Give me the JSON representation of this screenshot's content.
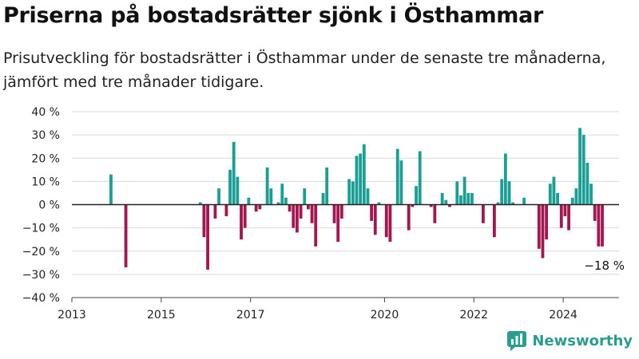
{
  "header": {
    "title": "Priserna på bostadsrätter sjönk i Östhammar",
    "subtitle": "Prisutveckling för bostadsrätter i Östhammar under de senaste tre månaderna, jämfört med tre månader tidigare."
  },
  "brand": {
    "name": "Newsworthy",
    "icon": "newsworthy-logo-icon",
    "color": "#2a9d8f"
  },
  "chart_data": {
    "type": "bar",
    "y_unit": "%",
    "ylim": [
      -40,
      40
    ],
    "yticks": [
      {
        "value": 40,
        "label": "40 %"
      },
      {
        "value": 30,
        "label": "30 %"
      },
      {
        "value": 20,
        "label": "20 %"
      },
      {
        "value": 10,
        "label": "10 %"
      },
      {
        "value": 0,
        "label": "0 %"
      },
      {
        "value": -10,
        "label": "−10 %"
      },
      {
        "value": -20,
        "label": "−20 %"
      },
      {
        "value": -30,
        "label": "−30 %"
      },
      {
        "value": -40,
        "label": "−40 %"
      }
    ],
    "xlim": [
      2013.0,
      2025.25
    ],
    "xticks": [
      {
        "value": 2013,
        "label": "2013"
      },
      {
        "value": 2015,
        "label": "2015"
      },
      {
        "value": 2017,
        "label": "2017"
      },
      {
        "value": 2020,
        "label": "2020"
      },
      {
        "value": 2022,
        "label": "2022"
      },
      {
        "value": 2024,
        "label": "2024"
      }
    ],
    "grid": "horizontal",
    "colors": {
      "positive": "#1b9e94",
      "negative": "#a3164f",
      "zero_line": "#222222",
      "grid": "#d9d9d9"
    },
    "annotation": {
      "text": "−18 %",
      "value": -18,
      "date": "2024-11"
    },
    "points": [
      {
        "date": "2013-11",
        "value": 13
      },
      {
        "date": "2014-03",
        "value": -27
      },
      {
        "date": "2015-11",
        "value": 1
      },
      {
        "date": "2015-12",
        "value": -14
      },
      {
        "date": "2016-01",
        "value": -28
      },
      {
        "date": "2016-02",
        "value": 0
      },
      {
        "date": "2016-03",
        "value": -6
      },
      {
        "date": "2016-04",
        "value": 7
      },
      {
        "date": "2016-06",
        "value": -5
      },
      {
        "date": "2016-07",
        "value": 15
      },
      {
        "date": "2016-08",
        "value": 27
      },
      {
        "date": "2016-09",
        "value": 12
      },
      {
        "date": "2016-10",
        "value": -15
      },
      {
        "date": "2016-11",
        "value": -10
      },
      {
        "date": "2016-12",
        "value": 3
      },
      {
        "date": "2017-02",
        "value": -3
      },
      {
        "date": "2017-03",
        "value": -2
      },
      {
        "date": "2017-05",
        "value": 16
      },
      {
        "date": "2017-06",
        "value": 7
      },
      {
        "date": "2017-08",
        "value": 1
      },
      {
        "date": "2017-09",
        "value": 9
      },
      {
        "date": "2017-10",
        "value": 3
      },
      {
        "date": "2017-11",
        "value": -3
      },
      {
        "date": "2017-12",
        "value": -10
      },
      {
        "date": "2018-01",
        "value": -12
      },
      {
        "date": "2018-02",
        "value": -6
      },
      {
        "date": "2018-03",
        "value": 7
      },
      {
        "date": "2018-04",
        "value": -2
      },
      {
        "date": "2018-05",
        "value": -8
      },
      {
        "date": "2018-06",
        "value": -18
      },
      {
        "date": "2018-08",
        "value": 5
      },
      {
        "date": "2018-09",
        "value": 16
      },
      {
        "date": "2018-11",
        "value": -8
      },
      {
        "date": "2018-12",
        "value": -16
      },
      {
        "date": "2019-01",
        "value": -6
      },
      {
        "date": "2019-02",
        "value": 0
      },
      {
        "date": "2019-03",
        "value": 11
      },
      {
        "date": "2019-04",
        "value": 10
      },
      {
        "date": "2019-05",
        "value": 21
      },
      {
        "date": "2019-06",
        "value": 22
      },
      {
        "date": "2019-07",
        "value": 26
      },
      {
        "date": "2019-08",
        "value": 7
      },
      {
        "date": "2019-09",
        "value": -7
      },
      {
        "date": "2019-10",
        "value": -13
      },
      {
        "date": "2019-11",
        "value": 1
      },
      {
        "date": "2020-01",
        "value": -14
      },
      {
        "date": "2020-02",
        "value": -16
      },
      {
        "date": "2020-04",
        "value": 24
      },
      {
        "date": "2020-05",
        "value": 19
      },
      {
        "date": "2020-07",
        "value": -11
      },
      {
        "date": "2020-08",
        "value": -1
      },
      {
        "date": "2020-09",
        "value": 8
      },
      {
        "date": "2020-10",
        "value": 23
      },
      {
        "date": "2021-01",
        "value": -1
      },
      {
        "date": "2021-02",
        "value": -8
      },
      {
        "date": "2021-04",
        "value": 5
      },
      {
        "date": "2021-05",
        "value": 2
      },
      {
        "date": "2021-06",
        "value": -1
      },
      {
        "date": "2021-08",
        "value": 10
      },
      {
        "date": "2021-09",
        "value": 4
      },
      {
        "date": "2021-10",
        "value": 12
      },
      {
        "date": "2021-11",
        "value": 5
      },
      {
        "date": "2021-12",
        "value": 5
      },
      {
        "date": "2022-03",
        "value": -8
      },
      {
        "date": "2022-06",
        "value": -14
      },
      {
        "date": "2022-07",
        "value": 1
      },
      {
        "date": "2022-08",
        "value": 11
      },
      {
        "date": "2022-09",
        "value": 22
      },
      {
        "date": "2022-10",
        "value": 10
      },
      {
        "date": "2022-11",
        "value": 1
      },
      {
        "date": "2023-02",
        "value": 3
      },
      {
        "date": "2023-06",
        "value": -19
      },
      {
        "date": "2023-07",
        "value": -23
      },
      {
        "date": "2023-08",
        "value": -15
      },
      {
        "date": "2023-09",
        "value": 9
      },
      {
        "date": "2023-10",
        "value": 12
      },
      {
        "date": "2023-11",
        "value": 5
      },
      {
        "date": "2023-12",
        "value": -10
      },
      {
        "date": "2024-01",
        "value": -5
      },
      {
        "date": "2024-02",
        "value": -11
      },
      {
        "date": "2024-03",
        "value": 3
      },
      {
        "date": "2024-04",
        "value": 7
      },
      {
        "date": "2024-05",
        "value": 33
      },
      {
        "date": "2024-06",
        "value": 30
      },
      {
        "date": "2024-07",
        "value": 18
      },
      {
        "date": "2024-08",
        "value": 9
      },
      {
        "date": "2024-09",
        "value": -7
      },
      {
        "date": "2024-10",
        "value": -18
      },
      {
        "date": "2024-11",
        "value": -18
      }
    ]
  }
}
